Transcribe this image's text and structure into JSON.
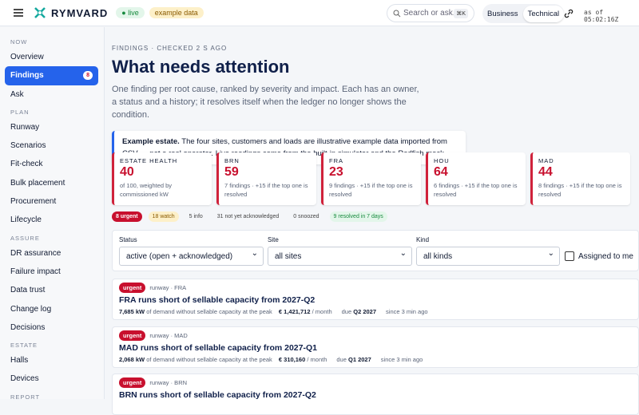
{
  "topbar": {
    "brand": "RYMVARD",
    "live": "live",
    "example": "example data",
    "search": "Search or ask...",
    "shortcut": "⌘K",
    "modes": [
      "Business",
      "Technical"
    ],
    "as_of": "as of 05:02:16Z"
  },
  "sidebar": {
    "sections": [
      {
        "title": "NOW",
        "items": [
          "Overview",
          "Findings",
          "Ask"
        ]
      },
      {
        "title": "PLAN",
        "items": [
          "Runway",
          "Scenarios",
          "Fit-check",
          "Bulk placement",
          "Procurement",
          "Lifecycle"
        ]
      },
      {
        "title": "ASSURE",
        "items": [
          "DR assurance",
          "Failure impact",
          "Data trust",
          "Change log",
          "Decisions"
        ]
      },
      {
        "title": "ESTATE",
        "items": [
          "Halls",
          "Devices"
        ]
      },
      {
        "title": "REPORT",
        "items": []
      }
    ],
    "findings_badge": 8
  },
  "header": {
    "eyebrow": "FINDINGS · CHECKED 2 S AGO",
    "title": "What needs attention",
    "description": "One finding per root cause, ranked by severity and impact. Each has an owner, a status and a history; it resolves itself when the ledger no longer shows the condition.",
    "callout_bold": "Example estate.",
    "callout_text": "The four sites, customers and loads are illustrative example data imported from CSV — not a real operator. Live readings come from the built-in simulator and the Redfish mock."
  },
  "cards": [
    {
      "label": "ESTATE HEALTH",
      "value": 40,
      "note": "of 100, weighted by commissioned kW"
    },
    {
      "label": "BRN",
      "value": 59,
      "note": "7 findings · +15 if the top one is resolved"
    },
    {
      "label": "FRA",
      "value": 23,
      "note": "9 findings · +15 if the top one is resolved"
    },
    {
      "label": "HOU",
      "value": 64,
      "note": "6 findings · +15 if the top one is resolved"
    },
    {
      "label": "MAD",
      "value": 44,
      "note": "8 findings · +15 if the top one is resolved"
    }
  ],
  "chips": [
    "8 urgent",
    "18 watch",
    "5 info",
    "31 not yet acknowledged",
    "0 snoozed",
    "9 resolved in 7 days"
  ],
  "filters": {
    "status_label": "Status",
    "status": "active (open + acknowledged)",
    "site_label": "Site",
    "site": "all sites",
    "kind_label": "Kind",
    "kind": "all kinds",
    "assigned": "Assigned to me"
  },
  "findings": [
    {
      "severity": "urgent",
      "tag": "runway · FRA",
      "title": "FRA runs short of sellable capacity from 2027-Q2",
      "kw": "7,685 kW",
      "kw_text": "of demand without sellable capacity at the peak",
      "cost": "€ 1,421,712",
      "cost_unit": "/ month",
      "due_label": "due",
      "due": "Q2 2027",
      "since": "since 3 min ago"
    },
    {
      "severity": "urgent",
      "tag": "runway · MAD",
      "title": "MAD runs short of sellable capacity from 2027-Q1",
      "kw": "2,068 kW",
      "kw_text": "of demand without sellable capacity at the peak",
      "cost": "€ 310,160",
      "cost_unit": "/ month",
      "due_label": "due",
      "due": "Q1 2027",
      "since": "since 3 min ago"
    },
    {
      "severity": "urgent",
      "tag": "runway · BRN",
      "title": "BRN runs short of sellable capacity from 2027-Q2"
    }
  ]
}
